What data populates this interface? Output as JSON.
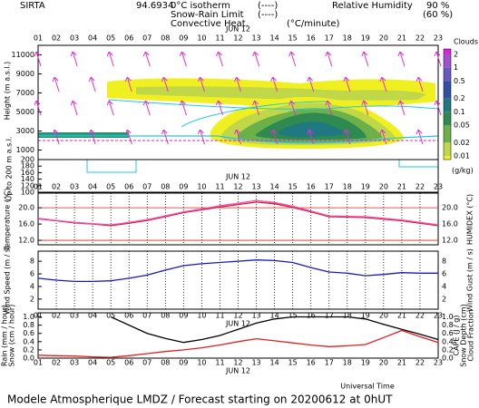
{
  "header": {
    "site": "SIRTA",
    "coord": "94.6934",
    "legend": [
      {
        "label": "0°C isotherm",
        "symbol": "(----)",
        "color": "#e020c0"
      },
      {
        "label": "Snow-Rain Limit",
        "symbol": "(----)",
        "color": "#ff66cc"
      },
      {
        "label": "Convective Heat.",
        "symbol": "(°C/minute)",
        "color": "#e02020"
      }
    ],
    "rh_label": "Relative Humidity",
    "rh_levels": [
      "90 %",
      "(60 %)"
    ],
    "rh_color": "#20c8e0"
  },
  "chart_data": [
    {
      "type": "contour",
      "date_label": "JUN 12",
      "categories": [
        "01",
        "02",
        "03",
        "04",
        "05",
        "06",
        "07",
        "08",
        "09",
        "10",
        "11",
        "12",
        "13",
        "14",
        "15",
        "16",
        "17",
        "18",
        "19",
        "20",
        "21",
        "22",
        "23"
      ],
      "y_label": "Height (m a.s.l.)",
      "y_label_low": "Up to 200 m a.s.l.",
      "ylim": [
        0,
        12000
      ],
      "yticks": [
        1000,
        3000,
        5000,
        7000,
        9000,
        11000
      ],
      "ylim_low": [
        100,
        200
      ],
      "yticks_low": [
        100,
        120,
        140,
        160,
        180,
        200
      ],
      "colorbar": {
        "title": "Clouds",
        "unit": "(g/kg)",
        "log": true,
        "ticks": [
          2,
          1,
          0.5,
          0.2,
          0.1,
          0.05,
          0.02,
          0.01
        ],
        "colors": [
          "#e020e0",
          "#a050d0",
          "#6a58c0",
          "#3050a8",
          "#207880",
          "#2e8a50",
          "#6cb04a",
          "#c0d848",
          "#f0f020"
        ]
      }
    },
    {
      "type": "line",
      "categories": [
        "01",
        "02",
        "03",
        "04",
        "05",
        "06",
        "07",
        "08",
        "09",
        "10",
        "11",
        "12",
        "13",
        "14",
        "15",
        "16",
        "17",
        "18",
        "19",
        "20",
        "21",
        "22",
        "23"
      ],
      "y_label": "Temperature (°C)",
      "y2_label": "HUMIDEX (°C)",
      "ylim": [
        10.9,
        23.6
      ],
      "yticks": [
        {
          "value": 12,
          "label": "12.0"
        },
        {
          "value": 16,
          "label": "16.0"
        },
        {
          "value": 20,
          "label": "20.0"
        }
      ],
      "hlines": [
        12,
        20
      ],
      "hline_color": "#e02020",
      "series": [
        {
          "name": "Temperature",
          "color": "#d81830",
          "values": [
            17.3,
            16.8,
            16.3,
            16.0,
            15.6,
            16.2,
            16.9,
            17.8,
            18.8,
            19.5,
            20.2,
            20.8,
            21.4,
            21.0,
            20.1,
            19.0,
            17.8,
            17.7,
            17.6,
            17.2,
            16.8,
            16.2,
            15.6
          ]
        },
        {
          "name": "HUMIDEX",
          "color": "#f050b0",
          "values": [
            17.4,
            16.9,
            16.4,
            16.1,
            15.8,
            16.4,
            17.1,
            18.0,
            19.0,
            19.7,
            20.5,
            21.1,
            21.8,
            21.3,
            20.4,
            19.2,
            18.0,
            17.9,
            17.8,
            17.4,
            17.0,
            16.4,
            15.8
          ]
        }
      ]
    },
    {
      "type": "line",
      "categories": [
        "01",
        "02",
        "03",
        "04",
        "05",
        "06",
        "07",
        "08",
        "09",
        "10",
        "11",
        "12",
        "13",
        "14",
        "15",
        "16",
        "17",
        "18",
        "19",
        "20",
        "21",
        "22",
        "23"
      ],
      "y_label": "Wind Speed (m / s)",
      "y2_label": "Wind Gust (m / s)",
      "ylim": [
        0.4,
        9.6
      ],
      "yticks": [
        2,
        4,
        6,
        8
      ],
      "series": [
        {
          "name": "Wind Speed",
          "color": "#1818c0",
          "values": [
            5.3,
            5.0,
            4.8,
            4.8,
            4.9,
            5.3,
            5.8,
            6.6,
            7.3,
            7.6,
            7.8,
            8.0,
            8.2,
            8.1,
            7.8,
            7.0,
            6.3,
            6.1,
            5.7,
            5.9,
            6.2,
            6.1,
            6.1
          ]
        }
      ]
    },
    {
      "type": "line",
      "date_label": "JUN 12",
      "x_label": "Universal Time",
      "categories": [
        "01",
        "02",
        "03",
        "04",
        "05",
        "06",
        "07",
        "08",
        "09",
        "10",
        "11",
        "12",
        "13",
        "14",
        "15",
        "16",
        "17",
        "18",
        "19",
        "20",
        "21",
        "22",
        "23"
      ],
      "left_labels": [
        {
          "text": "Rain (mm / hour)",
          "color": "#10a010"
        },
        {
          "text": "Snow (cm / hour)",
          "color": "#2050d0"
        }
      ],
      "right_labels": [
        {
          "text": "CAPE (J / g)",
          "color": "#e02020"
        },
        {
          "text": "Snow Depth (cm)",
          "color": "#2050d0"
        },
        {
          "text": "Cloud Fraction",
          "color": "#000000"
        }
      ],
      "ylim": [
        0,
        1.1
      ],
      "yticks": [
        {
          "value": 0,
          "label": "0.0"
        },
        {
          "value": 0.2,
          "label": "0.2"
        },
        {
          "value": 0.4,
          "label": "0.4"
        },
        {
          "value": 0.6,
          "label": "0.6"
        },
        {
          "value": 0.8,
          "label": "0.8"
        },
        {
          "value": 1,
          "label": "1.0"
        }
      ],
      "series": [
        {
          "name": "Cloud Fraction",
          "color": "#000000",
          "values": [
            null,
            null,
            null,
            null,
            1.0,
            0.8,
            0.6,
            0.48,
            0.38,
            0.45,
            0.55,
            0.7,
            0.85,
            0.95,
            1.0,
            1.0,
            1.0,
            1.0,
            0.95,
            0.82,
            0.7,
            0.58,
            0.45
          ]
        },
        {
          "name": "CAPE",
          "color": "#e02020",
          "values": [
            0.07,
            0.06,
            0.05,
            0.03,
            0.02,
            0.06,
            0.11,
            0.16,
            0.2,
            0.25,
            0.32,
            0.4,
            0.47,
            0.42,
            0.37,
            0.32,
            0.28,
            0.3,
            0.33,
            0.5,
            0.67,
            0.52,
            0.38
          ]
        }
      ]
    }
  ],
  "footer": "Modele Atmospherique LMDZ / Forecast starting on 20200612 at 0hUT"
}
